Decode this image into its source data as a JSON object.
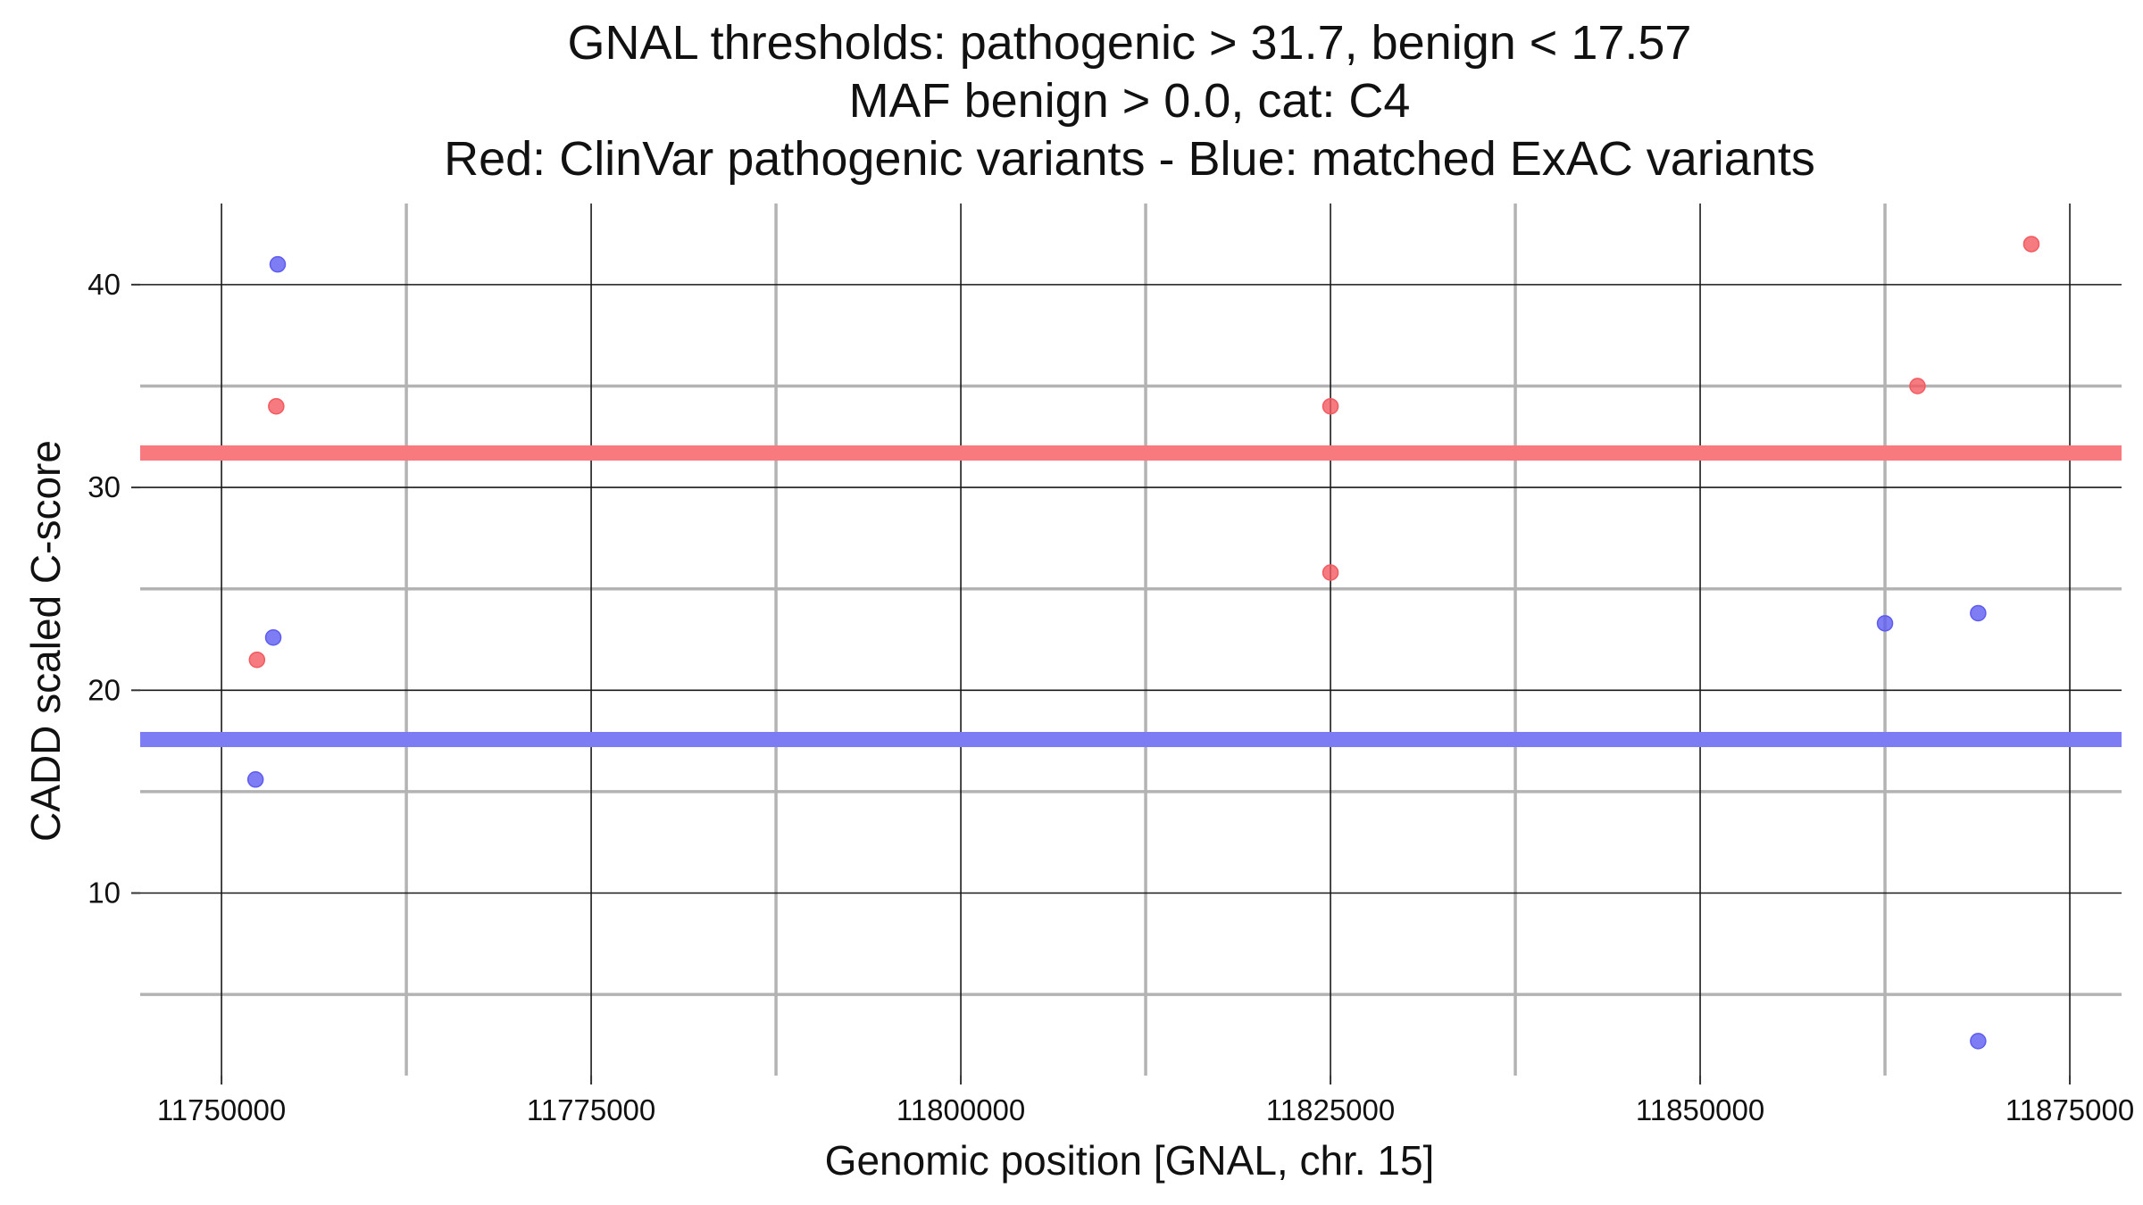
{
  "chart_data": {
    "type": "scatter",
    "title_lines": [
      "GNAL thresholds: pathogenic > 31.7, benign < 17.57",
      "MAF benign > 0.0, cat: C4",
      "Red: ClinVar pathogenic variants - Blue: matched ExAC variants"
    ],
    "xlabel": "Genomic position [GNAL, chr. 15]",
    "ylabel": "CADD scaled C-score",
    "xlim": [
      11744500,
      11878500
    ],
    "ylim": [
      1,
      44
    ],
    "x_major_ticks": [
      11750000,
      11775000,
      11800000,
      11825000,
      11850000,
      11875000
    ],
    "x_minor_ticks": [
      11762500,
      11787500,
      11812500,
      11837500,
      11862500
    ],
    "y_major_ticks": [
      10,
      20,
      30,
      40
    ],
    "y_minor_ticks": [
      5,
      15,
      25,
      35
    ],
    "x_tick_labels": [
      "11750000",
      "11775000",
      "11800000",
      "11825000",
      "11850000",
      "11875000"
    ],
    "y_tick_labels": [
      "10",
      "20",
      "30",
      "40"
    ],
    "grid": true,
    "thresholds": [
      {
        "label": "pathogenic",
        "y": 31.7,
        "color": "#f87a7f"
      },
      {
        "label": "benign",
        "y": 17.57,
        "color": "#7d7cf5"
      }
    ],
    "series": [
      {
        "color": "#f25a60",
        "points": [
          {
            "x": 11752400,
            "y": 21.5
          },
          {
            "x": 11753700,
            "y": 34.0
          },
          {
            "x": 11825000,
            "y": 34.0
          },
          {
            "x": 11825000,
            "y": 25.8
          },
          {
            "x": 11864700,
            "y": 35.0
          },
          {
            "x": 11872400,
            "y": 42.0
          }
        ]
      },
      {
        "color": "#5e5cf0",
        "points": [
          {
            "x": 11752300,
            "y": 15.6
          },
          {
            "x": 11753500,
            "y": 22.6
          },
          {
            "x": 11753800,
            "y": 41.0
          },
          {
            "x": 11862500,
            "y": 23.3
          },
          {
            "x": 11868800,
            "y": 23.8
          },
          {
            "x": 11868800,
            "y": 2.7
          }
        ]
      }
    ]
  }
}
